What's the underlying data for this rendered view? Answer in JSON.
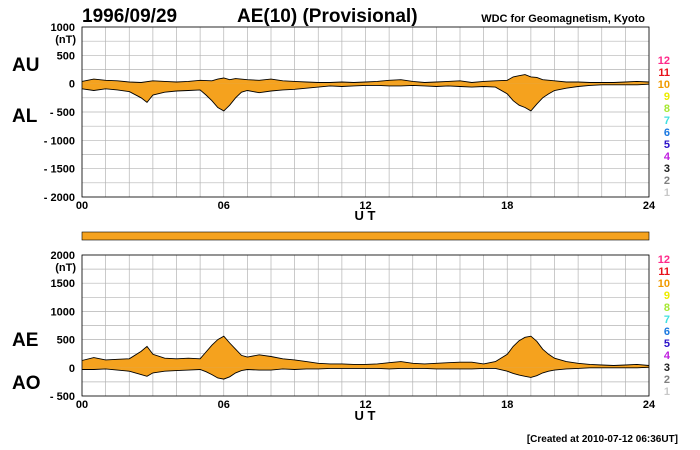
{
  "header": {
    "date": "1996/09/29",
    "title": "AE(10) (Provisional)",
    "source": "WDC for Geomagnetism, Kyoto"
  },
  "footer": {
    "created": "[Created at 2010-07-12 06:36UT]"
  },
  "colors": {
    "fill": "#f5a21e",
    "stroke": "#000000",
    "grid": "#b4b4b4",
    "bar": "#f5a21e"
  },
  "levels": {
    "labels": [
      "12",
      "11",
      "10",
      "9",
      "8",
      "7",
      "6",
      "5",
      "4",
      "3",
      "2",
      "1"
    ],
    "colors": [
      "#ff2a8a",
      "#e8101a",
      "#f09a00",
      "#ecec00",
      "#a6e832",
      "#40e0e0",
      "#1a78e0",
      "#2a10c8",
      "#c020e0",
      "#202020",
      "#808080",
      "#c8c8c8"
    ]
  },
  "chart_data": [
    {
      "type": "area",
      "name": "AU-AL panel",
      "xlabel": "U T",
      "ylabel": "(nT)",
      "left_labels": {
        "upper": "AU",
        "lower": "AL"
      },
      "xlim": [
        0,
        24
      ],
      "ylim": [
        -2000,
        1000
      ],
      "x_ticks": [
        "00",
        "06",
        "12",
        "18",
        "24"
      ],
      "y_ticks": [
        {
          "v": 1000,
          "label": "1000"
        },
        {
          "v": 500,
          "label": "500"
        },
        {
          "v": 0,
          "label": "0"
        },
        {
          "v": -500,
          "label": "- 500"
        },
        {
          "v": -1000,
          "label": "- 1000"
        },
        {
          "v": -1500,
          "label": "- 1500"
        },
        {
          "v": -2000,
          "label": "- 2000"
        }
      ],
      "series": [
        {
          "name": "AU",
          "x": [
            0,
            0.5,
            1,
            1.5,
            2,
            2.5,
            3,
            3.5,
            4,
            4.5,
            5,
            5.5,
            5.75,
            6,
            6.25,
            6.5,
            7,
            7.5,
            8,
            8.5,
            9,
            9.5,
            10,
            10.5,
            11,
            11.5,
            12,
            12.5,
            13,
            13.5,
            14,
            14.5,
            15,
            15.5,
            16,
            16.5,
            17,
            17.5,
            18,
            18.25,
            18.5,
            18.75,
            19,
            19.25,
            19.5,
            20,
            20.5,
            21,
            21.5,
            22,
            22.5,
            23,
            23.5,
            24
          ],
          "values": [
            40,
            80,
            60,
            50,
            30,
            20,
            50,
            40,
            30,
            40,
            60,
            50,
            80,
            100,
            70,
            90,
            70,
            60,
            80,
            50,
            40,
            30,
            20,
            20,
            30,
            20,
            30,
            40,
            60,
            70,
            40,
            20,
            30,
            40,
            50,
            20,
            40,
            50,
            60,
            120,
            140,
            160,
            120,
            110,
            70,
            50,
            30,
            30,
            20,
            20,
            20,
            30,
            40,
            30
          ]
        },
        {
          "name": "AL",
          "x": [
            0,
            0.5,
            1,
            1.5,
            2,
            2.5,
            2.75,
            3,
            3.5,
            4,
            4.5,
            5,
            5.25,
            5.5,
            5.75,
            6,
            6.25,
            6.5,
            6.75,
            7,
            7.5,
            8,
            8.5,
            9,
            9.5,
            10,
            10.5,
            11,
            11.5,
            12,
            12.5,
            13,
            13.5,
            14,
            14.5,
            15,
            15.5,
            16,
            16.5,
            17,
            17.5,
            18,
            18.25,
            18.5,
            18.75,
            19,
            19.25,
            19.5,
            19.75,
            20,
            20.5,
            21,
            21.5,
            22,
            22.5,
            23,
            23.5,
            24
          ],
          "values": [
            -90,
            -120,
            -90,
            -110,
            -140,
            -250,
            -330,
            -200,
            -150,
            -130,
            -120,
            -110,
            -200,
            -300,
            -420,
            -480,
            -380,
            -250,
            -150,
            -120,
            -160,
            -130,
            -110,
            -100,
            -80,
            -60,
            -40,
            -50,
            -40,
            -30,
            -30,
            -40,
            -40,
            -30,
            -40,
            -50,
            -40,
            -50,
            -60,
            -50,
            -60,
            -180,
            -300,
            -380,
            -420,
            -480,
            -360,
            -250,
            -180,
            -120,
            -80,
            -50,
            -30,
            -20,
            -20,
            -20,
            -20,
            -10
          ]
        }
      ]
    },
    {
      "type": "area",
      "name": "AE-AO panel",
      "xlabel": "U T",
      "ylabel": "(nT)",
      "left_labels": {
        "upper": "AE",
        "lower": "AO"
      },
      "xlim": [
        0,
        24
      ],
      "ylim": [
        -500,
        2000
      ],
      "x_ticks": [
        "00",
        "06",
        "12",
        "18",
        "24"
      ],
      "y_ticks": [
        {
          "v": 2000,
          "label": "2000"
        },
        {
          "v": 1500,
          "label": "1500"
        },
        {
          "v": 1000,
          "label": "1000"
        },
        {
          "v": 500,
          "label": "500"
        },
        {
          "v": 0,
          "label": "0"
        },
        {
          "v": -500,
          "label": "- 500"
        }
      ],
      "series": [
        {
          "name": "AE",
          "x": [
            0,
            0.5,
            1,
            1.5,
            2,
            2.5,
            2.75,
            3,
            3.5,
            4,
            4.5,
            5,
            5.25,
            5.5,
            5.75,
            6,
            6.25,
            6.5,
            6.75,
            7,
            7.5,
            8,
            8.5,
            9,
            9.5,
            10,
            10.5,
            11,
            11.5,
            12,
            12.5,
            13,
            13.5,
            14,
            14.5,
            15,
            15.5,
            16,
            16.5,
            17,
            17.5,
            18,
            18.25,
            18.5,
            18.75,
            19,
            19.25,
            19.5,
            19.75,
            20,
            20.5,
            21,
            21.5,
            22,
            22.5,
            23,
            23.5,
            24
          ],
          "values": [
            130,
            180,
            140,
            150,
            160,
            290,
            380,
            240,
            170,
            160,
            170,
            160,
            280,
            400,
            500,
            560,
            440,
            330,
            220,
            190,
            230,
            200,
            160,
            140,
            110,
            80,
            70,
            70,
            60,
            60,
            70,
            90,
            110,
            80,
            70,
            80,
            90,
            100,
            100,
            70,
            110,
            240,
            380,
            480,
            540,
            560,
            470,
            330,
            240,
            170,
            110,
            80,
            60,
            50,
            40,
            50,
            60,
            40
          ]
        },
        {
          "name": "AO",
          "x": [
            0,
            0.5,
            1,
            1.5,
            2,
            2.5,
            2.75,
            3,
            3.5,
            4,
            4.5,
            5,
            5.25,
            5.5,
            5.75,
            6,
            6.25,
            6.5,
            6.75,
            7,
            7.5,
            8,
            8.5,
            9,
            9.5,
            10,
            10.5,
            11,
            11.5,
            12,
            12.5,
            13,
            13.5,
            14,
            14.5,
            15,
            15.5,
            16,
            16.5,
            17,
            17.5,
            18,
            18.25,
            18.5,
            18.75,
            19,
            19.25,
            19.5,
            19.75,
            20,
            20.5,
            21,
            21.5,
            22,
            22.5,
            23,
            23.5,
            24
          ],
          "values": [
            -30,
            -30,
            -20,
            -40,
            -60,
            -120,
            -150,
            -90,
            -60,
            -50,
            -40,
            -30,
            -70,
            -120,
            -180,
            -200,
            -160,
            -90,
            -50,
            -30,
            -40,
            -40,
            -20,
            -30,
            -20,
            -20,
            -10,
            -10,
            -10,
            -10,
            -10,
            -20,
            -10,
            -10,
            -10,
            -20,
            -20,
            -20,
            -20,
            -10,
            -10,
            -60,
            -100,
            -130,
            -150,
            -170,
            -140,
            -90,
            -60,
            -40,
            -20,
            -10,
            0,
            0,
            0,
            0,
            0,
            10
          ]
        }
      ]
    }
  ]
}
